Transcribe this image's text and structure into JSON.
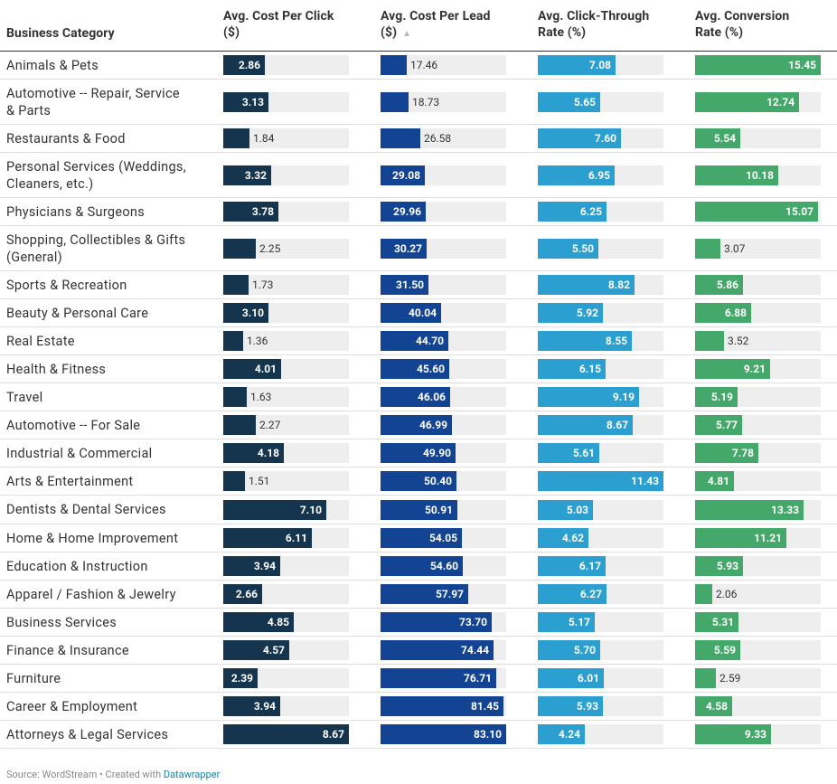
{
  "columns": [
    {
      "key": "category",
      "label_lines": [
        "Business Category"
      ]
    },
    {
      "key": "cpc",
      "label_lines": [
        "Avg. Cost Per Click",
        "($)"
      ],
      "max": 8.67,
      "color": "#15354f"
    },
    {
      "key": "cpl",
      "label_lines": [
        "Avg. Cost Per Lead",
        "($)"
      ],
      "max": 83.1,
      "color": "#134494",
      "sort_icon": "▲"
    },
    {
      "key": "ctr",
      "label_lines": [
        "Avg. Click-Through",
        "Rate (%)"
      ],
      "max": 11.43,
      "color": "#2b9fcf"
    },
    {
      "key": "cvr",
      "label_lines": [
        "Avg. Conversion",
        "Rate (%)"
      ],
      "max": 15.45,
      "color": "#45a86b"
    }
  ],
  "chart_data": {
    "type": "table",
    "rows": [
      {
        "category": [
          "Animals & Pets"
        ],
        "cpc": 2.86,
        "cpl": 17.46,
        "ctr": 7.08,
        "cvr": 15.45
      },
      {
        "category": [
          "Automotive -- Repair, Service",
          "& Parts"
        ],
        "cpc": 3.13,
        "cpl": 18.73,
        "ctr": 5.65,
        "cvr": 12.74
      },
      {
        "category": [
          "Restaurants & Food"
        ],
        "cpc": 1.84,
        "cpl": 26.58,
        "ctr": 7.6,
        "cvr": 5.54
      },
      {
        "category": [
          "Personal Services (Weddings,",
          "Cleaners, etc.)"
        ],
        "cpc": 3.32,
        "cpl": 29.08,
        "ctr": 6.95,
        "cvr": 10.18
      },
      {
        "category": [
          "Physicians & Surgeons"
        ],
        "cpc": 3.78,
        "cpl": 29.96,
        "ctr": 6.25,
        "cvr": 15.07
      },
      {
        "category": [
          "Shopping, Collectibles & Gifts",
          "(General)"
        ],
        "cpc": 2.25,
        "cpl": 30.27,
        "ctr": 5.5,
        "cvr": 3.07
      },
      {
        "category": [
          "Sports & Recreation"
        ],
        "cpc": 1.73,
        "cpl": 31.5,
        "ctr": 8.82,
        "cvr": 5.86
      },
      {
        "category": [
          "Beauty & Personal Care"
        ],
        "cpc": 3.1,
        "cpl": 40.04,
        "ctr": 5.92,
        "cvr": 6.88
      },
      {
        "category": [
          "Real Estate"
        ],
        "cpc": 1.36,
        "cpl": 44.7,
        "ctr": 8.55,
        "cvr": 3.52
      },
      {
        "category": [
          "Health & Fitness"
        ],
        "cpc": 4.01,
        "cpl": 45.6,
        "ctr": 6.15,
        "cvr": 9.21
      },
      {
        "category": [
          "Travel"
        ],
        "cpc": 1.63,
        "cpl": 46.06,
        "ctr": 9.19,
        "cvr": 5.19
      },
      {
        "category": [
          "Automotive -- For Sale"
        ],
        "cpc": 2.27,
        "cpl": 46.99,
        "ctr": 8.67,
        "cvr": 5.77
      },
      {
        "category": [
          "Industrial & Commercial"
        ],
        "cpc": 4.18,
        "cpl": 49.9,
        "ctr": 5.61,
        "cvr": 7.78
      },
      {
        "category": [
          "Arts & Entertainment"
        ],
        "cpc": 1.51,
        "cpl": 50.4,
        "ctr": 11.43,
        "cvr": 4.81
      },
      {
        "category": [
          "Dentists & Dental Services"
        ],
        "cpc": 7.1,
        "cpl": 50.91,
        "ctr": 5.03,
        "cvr": 13.33
      },
      {
        "category": [
          "Home & Home Improvement"
        ],
        "cpc": 6.11,
        "cpl": 54.05,
        "ctr": 4.62,
        "cvr": 11.21
      },
      {
        "category": [
          "Education & Instruction"
        ],
        "cpc": 3.94,
        "cpl": 54.6,
        "ctr": 6.17,
        "cvr": 5.93
      },
      {
        "category": [
          "Apparel / Fashion & Jewelry"
        ],
        "cpc": 2.66,
        "cpl": 57.97,
        "ctr": 6.27,
        "cvr": 2.06
      },
      {
        "category": [
          "Business Services"
        ],
        "cpc": 4.85,
        "cpl": 73.7,
        "ctr": 5.17,
        "cvr": 5.31
      },
      {
        "category": [
          "Finance & Insurance"
        ],
        "cpc": 4.57,
        "cpl": 74.44,
        "ctr": 5.7,
        "cvr": 5.59
      },
      {
        "category": [
          "Furniture"
        ],
        "cpc": 2.39,
        "cpl": 76.71,
        "ctr": 6.01,
        "cvr": 2.59
      },
      {
        "category": [
          "Career & Employment"
        ],
        "cpc": 3.94,
        "cpl": 81.45,
        "ctr": 5.93,
        "cvr": 4.58
      },
      {
        "category": [
          "Attorneys & Legal Services"
        ],
        "cpc": 8.67,
        "cpl": 83.1,
        "ctr": 4.24,
        "cvr": 9.33
      }
    ]
  },
  "footer": {
    "source": "Source: WordStream • Created with ",
    "link": "Datawrapper"
  }
}
